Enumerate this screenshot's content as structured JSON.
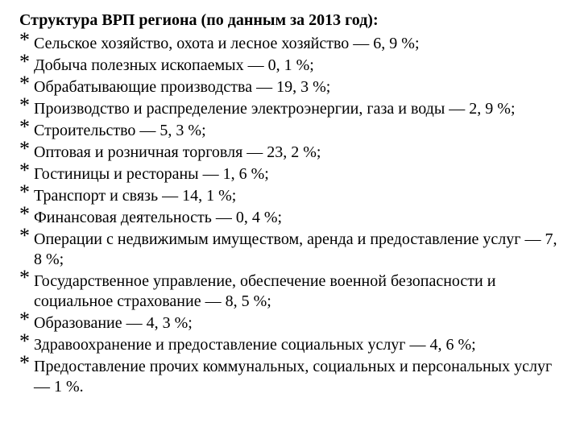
{
  "title": "Структура ВРП региона (по данным за 2013 год):",
  "bullet_char": "*",
  "items": [
    {
      "label": "Сельское хозяйство, охота и лесное хозяйство",
      "value": "6, 9 %"
    },
    {
      "label": "Добыча полезных ископаемых",
      "value": "0, 1 %"
    },
    {
      "label": "Обрабатывающие производства",
      "value": "19, 3 %"
    },
    {
      "label": "Производство и распределение электроэнергии, газа и воды",
      "value": "2, 9 %"
    },
    {
      "label": "Строительство",
      "value": "5, 3 %"
    },
    {
      "label": "Оптовая и розничная торговля",
      "value": "23, 2 %"
    },
    {
      "label": "Гостиницы и рестораны",
      "value": "1, 6 %"
    },
    {
      "label": "Транспорт и связь",
      "value": "14, 1 %"
    },
    {
      "label": "Финансовая деятельность",
      "value": "0, 4 %"
    },
    {
      "label": "Операции с недвижимым имуществом, аренда и предоставление услуг",
      "value": "7, 8 %"
    },
    {
      "label": "Государственное управление, обеспечение военной безопасности и социальное страхование",
      "value": "8, 5 %"
    },
    {
      "label": "Образование",
      "value": "4, 3 %"
    },
    {
      "label": "Здравоохранение и предоставление социальных услуг",
      "value": "4, 6 %"
    },
    {
      "label": "Предоставление прочих коммунальных, социальных и персональных услуг",
      "value": "1 %"
    }
  ],
  "separator": " — ",
  "terminator_mid": ";",
  "terminator_last": ".",
  "colors": {
    "background": "#ffffff",
    "text": "#000000"
  },
  "typography": {
    "title_fontsize_pt": 15,
    "body_fontsize_pt": 15,
    "font_family": "Times New Roman",
    "title_weight": "bold",
    "body_weight": "normal"
  }
}
